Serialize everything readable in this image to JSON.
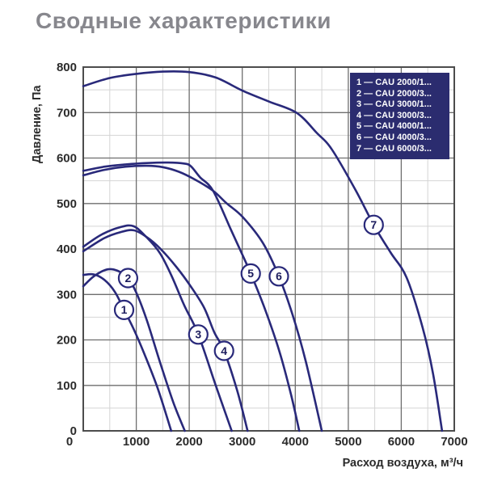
{
  "page": {
    "title": "Сводные характеристики"
  },
  "chart_data": {
    "type": "line",
    "title": "Сводные характеристики",
    "xlabel": "Расход воздуха, м³/ч",
    "ylabel": "Давление, Па",
    "xlim": [
      0,
      7000
    ],
    "ylim": [
      0,
      800
    ],
    "x_ticks": [
      0,
      1000,
      2000,
      3000,
      4000,
      5000,
      6000,
      7000
    ],
    "y_ticks": [
      0,
      100,
      200,
      300,
      400,
      500,
      600,
      700,
      800
    ],
    "grid": {
      "major": true,
      "minor": true,
      "minor_step_x": 500,
      "minor_step_y": 50
    },
    "legend_position": "top-right",
    "colors": {
      "curve": "#29297a",
      "marker_fill": "#ffffff",
      "marker_text": "#1d1d5e",
      "grid_major": "#6e6e6e",
      "grid_minor": "#d4d4d4",
      "frame": "#4c4c4c",
      "tick_text": "#2b2b2b",
      "legend_bg": "#2b2c6f",
      "legend_text": "#ffffff",
      "title": "#87878d"
    },
    "series": [
      {
        "num": "1",
        "name": "CAU 2000/1...",
        "marker_at": [
          770,
          266
        ],
        "points": [
          [
            0,
            343
          ],
          [
            200,
            344
          ],
          [
            400,
            332
          ],
          [
            600,
            305
          ],
          [
            770,
            266
          ],
          [
            950,
            224
          ],
          [
            1150,
            170
          ],
          [
            1400,
            95
          ],
          [
            1660,
            0
          ]
        ]
      },
      {
        "num": "2",
        "name": "CAU 2000/3...",
        "marker_at": [
          845,
          336
        ],
        "points": [
          [
            0,
            318
          ],
          [
            200,
            340
          ],
          [
            450,
            355
          ],
          [
            650,
            352
          ],
          [
            845,
            336
          ],
          [
            1000,
            304
          ],
          [
            1200,
            243
          ],
          [
            1450,
            150
          ],
          [
            1700,
            62
          ],
          [
            1915,
            0
          ]
        ]
      },
      {
        "num": "3",
        "name": "CAU 3000/1...",
        "marker_at": [
          2170,
          212
        ],
        "points": [
          [
            0,
            405
          ],
          [
            350,
            432
          ],
          [
            700,
            448
          ],
          [
            950,
            450
          ],
          [
            1200,
            425
          ],
          [
            1450,
            390
          ],
          [
            1670,
            340
          ],
          [
            1910,
            275
          ],
          [
            2170,
            212
          ],
          [
            2500,
            100
          ],
          [
            2800,
            0
          ]
        ]
      },
      {
        "num": "4",
        "name": "CAU 3000/3...",
        "marker_at": [
          2657,
          176
        ],
        "points": [
          [
            0,
            395
          ],
          [
            400,
            424
          ],
          [
            700,
            437
          ],
          [
            950,
            441
          ],
          [
            1200,
            426
          ],
          [
            1450,
            401
          ],
          [
            1760,
            360
          ],
          [
            2020,
            319
          ],
          [
            2280,
            271
          ],
          [
            2470,
            217
          ],
          [
            2657,
            176
          ],
          [
            2900,
            90
          ],
          [
            3100,
            0
          ]
        ]
      },
      {
        "num": "5",
        "name": "CAU 4000/1...",
        "marker_at": [
          3160,
          346
        ],
        "points": [
          [
            0,
            572
          ],
          [
            400,
            581
          ],
          [
            800,
            586
          ],
          [
            1200,
            589
          ],
          [
            1600,
            590
          ],
          [
            1900,
            588
          ],
          [
            2030,
            582
          ],
          [
            2200,
            558
          ],
          [
            2450,
            528
          ],
          [
            2780,
            444
          ],
          [
            3040,
            378
          ],
          [
            3160,
            346
          ],
          [
            3420,
            270
          ],
          [
            3700,
            175
          ],
          [
            3920,
            80
          ],
          [
            4075,
            0
          ]
        ]
      },
      {
        "num": "6",
        "name": "CAU 4000/3...",
        "marker_at": [
          3690,
          340
        ],
        "points": [
          [
            0,
            562
          ],
          [
            400,
            574
          ],
          [
            800,
            581
          ],
          [
            1200,
            583
          ],
          [
            1500,
            580
          ],
          [
            1800,
            570
          ],
          [
            2100,
            553
          ],
          [
            2450,
            528
          ],
          [
            2700,
            501
          ],
          [
            3010,
            470
          ],
          [
            3390,
            413
          ],
          [
            3690,
            340
          ],
          [
            3950,
            255
          ],
          [
            4200,
            152
          ],
          [
            4500,
            0
          ]
        ]
      },
      {
        "num": "7",
        "name": "CAU 6000/3...",
        "marker_at": [
          5480,
          453
        ],
        "points": [
          [
            0,
            758
          ],
          [
            500,
            776
          ],
          [
            1000,
            785
          ],
          [
            1500,
            790
          ],
          [
            2000,
            789
          ],
          [
            2500,
            777
          ],
          [
            3010,
            748
          ],
          [
            3510,
            724
          ],
          [
            4030,
            699
          ],
          [
            4400,
            656
          ],
          [
            4690,
            619
          ],
          [
            5140,
            529
          ],
          [
            5480,
            453
          ],
          [
            5800,
            392
          ],
          [
            6100,
            337
          ],
          [
            6400,
            228
          ],
          [
            6600,
            125
          ],
          [
            6770,
            0
          ]
        ]
      }
    ]
  }
}
